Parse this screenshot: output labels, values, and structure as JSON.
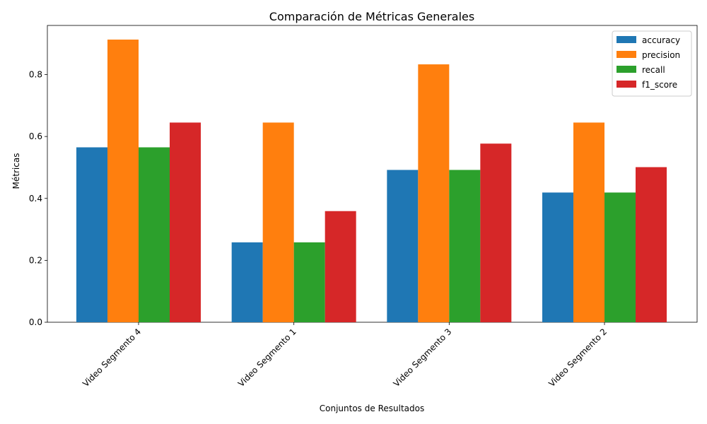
{
  "chart_data": {
    "type": "bar",
    "title": "Comparación de Métricas Generales",
    "xlabel": "Conjuntos de Resultados",
    "ylabel": "Métricas",
    "categories": [
      "Video Segmento 4",
      "Video Segmento 1",
      "Video Segmento 3",
      "Video Segmento 2"
    ],
    "series": [
      {
        "name": "accuracy",
        "color": "#1f77b4",
        "values": [
          0.565,
          0.258,
          0.492,
          0.419
        ]
      },
      {
        "name": "precision",
        "color": "#ff7f0e",
        "values": [
          0.913,
          0.645,
          0.833,
          0.645
        ]
      },
      {
        "name": "recall",
        "color": "#2ca02c",
        "values": [
          0.565,
          0.258,
          0.492,
          0.419
        ]
      },
      {
        "name": "f1_score",
        "color": "#d62728",
        "values": [
          0.645,
          0.359,
          0.577,
          0.501
        ]
      }
    ],
    "ylim": [
      0,
      0.9587
    ],
    "yticks": [
      0.0,
      0.2,
      0.4,
      0.6,
      0.8
    ],
    "ytick_labels": [
      "0.0",
      "0.2",
      "0.4",
      "0.6",
      "0.8"
    ],
    "xtick_rotation_deg": 45,
    "legend_position": "top-right",
    "grid": false
  }
}
